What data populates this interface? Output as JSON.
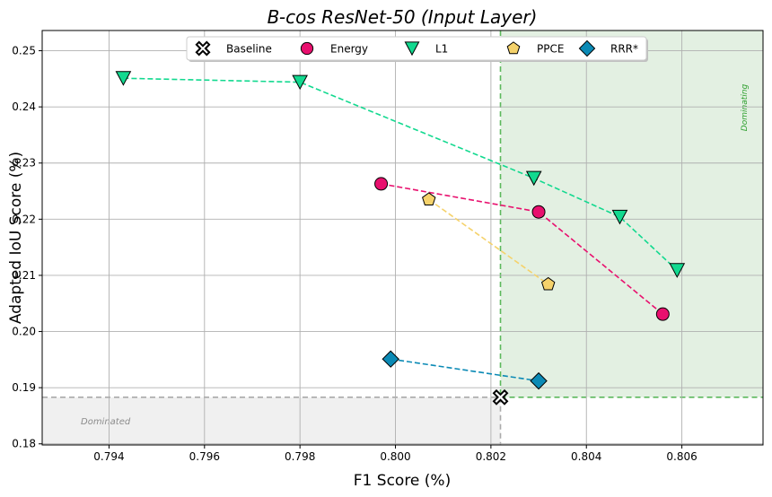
{
  "chart_data": {
    "type": "scatter",
    "title": "B-cos ResNet-50 (Input Layer)",
    "xlabel": "F1 Score (%)",
    "ylabel": "Adapted IoU Score (%)",
    "xlim": [
      0.7926,
      0.8077
    ],
    "ylim": [
      0.1798,
      0.2536
    ],
    "xticks": [
      "0.794",
      "0.796",
      "0.798",
      "0.800",
      "0.802",
      "0.804",
      "0.806"
    ],
    "yticks": [
      "0.18",
      "0.19",
      "0.20",
      "0.21",
      "0.22",
      "0.23",
      "0.24",
      "0.25"
    ],
    "grid": true,
    "legend": "top-center",
    "baseline": {
      "x": 0.8022,
      "y": 0.1883
    },
    "regions": {
      "dominating_label": "Dominating",
      "dominated_label": "Dominated"
    },
    "series": [
      {
        "name": "Baseline",
        "marker": "x-circle",
        "color": "#ffffff",
        "points": [
          [
            0.8022,
            0.1883
          ]
        ]
      },
      {
        "name": "Energy",
        "marker": "circle",
        "color": "#e8106e",
        "points": [
          [
            0.7997,
            0.2263
          ],
          [
            0.803,
            0.2213
          ],
          [
            0.8056,
            0.2031
          ]
        ]
      },
      {
        "name": "L1",
        "marker": "triangle-down",
        "color": "#12d98f",
        "points": [
          [
            0.7943,
            0.2451
          ],
          [
            0.798,
            0.2444
          ],
          [
            0.8029,
            0.2273
          ],
          [
            0.8047,
            0.2204
          ],
          [
            0.8059,
            0.2109
          ]
        ]
      },
      {
        "name": "PPCE",
        "marker": "pentagon",
        "color": "#f5d26b",
        "points": [
          [
            0.8007,
            0.2235
          ],
          [
            0.8032,
            0.2084
          ]
        ]
      },
      {
        "name": "RRR*",
        "marker": "diamond",
        "color": "#0b8ab5",
        "points": [
          [
            0.7999,
            0.1951
          ],
          [
            0.803,
            0.1912
          ]
        ]
      }
    ]
  }
}
